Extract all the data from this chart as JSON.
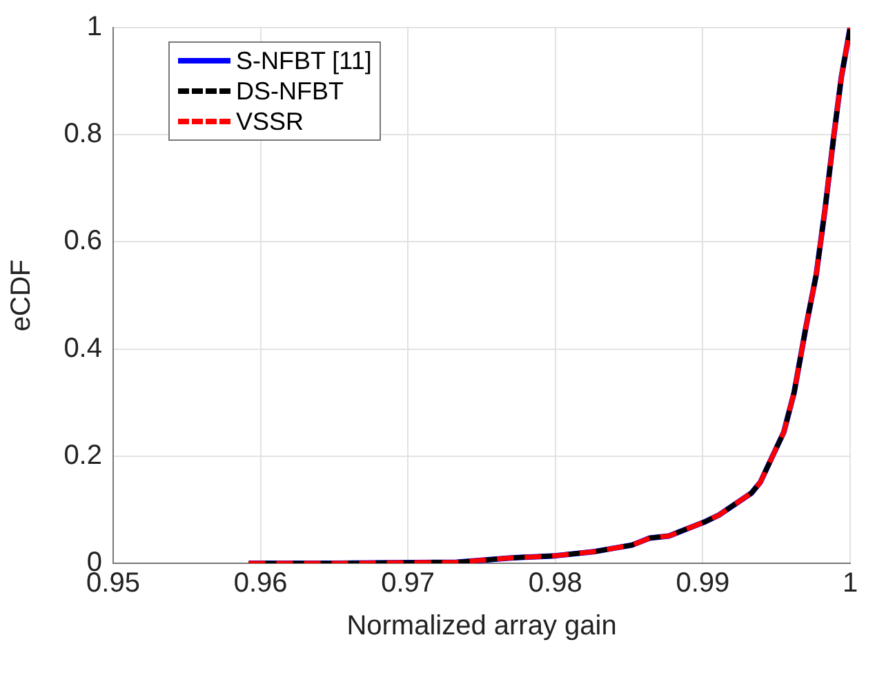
{
  "chart_data": {
    "type": "line",
    "xlabel": "Normalized array gain",
    "ylabel": "eCDF",
    "xlim": [
      0.95,
      1
    ],
    "xticks": [
      0.95,
      0.96,
      0.97,
      0.98,
      0.99,
      {
        "value": 1,
        "label": "1"
      }
    ],
    "ylim": [
      0,
      1
    ],
    "yticks": [
      0,
      0.2,
      0.4,
      0.6,
      0.8,
      {
        "value": 1,
        "label": "1"
      }
    ],
    "grid": true,
    "legend": "top left",
    "marker": "none",
    "x": [
      0.9592,
      0.965,
      0.9733,
      0.977,
      0.98,
      0.9827,
      0.9852,
      0.9864,
      0.9877,
      0.9902,
      0.9911,
      0.9933,
      0.9939,
      0.9955,
      0.9962,
      0.997,
      0.9977,
      0.9983,
      0.9989,
      0.9994,
      1.0
    ],
    "series": [
      {
        "name": "S-NFBT [11]",
        "color": "#0000ff",
        "line_style": "solid",
        "values": [
          0,
          0,
          0.002,
          0.01,
          0.014,
          0.022,
          0.034,
          0.047,
          0.051,
          0.078,
          0.09,
          0.131,
          0.151,
          0.245,
          0.319,
          0.441,
          0.539,
          0.662,
          0.8,
          0.907,
          1
        ]
      },
      {
        "name": "DS-NFBT",
        "color": "#000000",
        "line_style": "dashed",
        "values": [
          0,
          0,
          0.002,
          0.01,
          0.014,
          0.022,
          0.034,
          0.047,
          0.051,
          0.078,
          0.09,
          0.131,
          0.151,
          0.245,
          0.319,
          0.441,
          0.539,
          0.662,
          0.8,
          0.907,
          1
        ]
      },
      {
        "name": "VSSR",
        "color": "#ff0000",
        "line_style": "dashed",
        "values": [
          0,
          0,
          0.002,
          0.01,
          0.014,
          0.022,
          0.034,
          0.047,
          0.051,
          0.078,
          0.09,
          0.131,
          0.151,
          0.245,
          0.319,
          0.441,
          0.539,
          0.662,
          0.8,
          0.907,
          1
        ]
      }
    ]
  }
}
